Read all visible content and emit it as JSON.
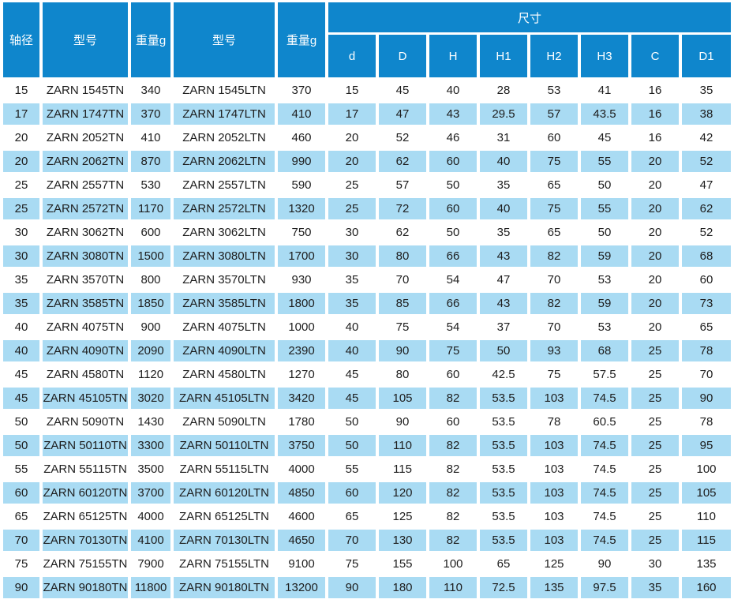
{
  "table": {
    "headers": {
      "shaft_diameter": "轴径",
      "model_1": "型号",
      "weight_1": "重量g",
      "model_2": "型号",
      "weight_2": "重量g",
      "dimensions_group": "尺寸",
      "dim_cols": [
        "d",
        "D",
        "H",
        "H1",
        "H2",
        "H3",
        "C",
        "D1"
      ]
    },
    "colors": {
      "header_bg": "#0f86cc",
      "row_alt_bg": "#a9dbf3",
      "row_bg": "#ffffff",
      "text": "#1d1d1d",
      "header_text": "#ffffff"
    },
    "rows": [
      [
        15,
        "ZARN 1545TN",
        340,
        "ZARN 1545LTN",
        370,
        15,
        45,
        40,
        28,
        53,
        41,
        16,
        35
      ],
      [
        17,
        "ZARN 1747TN",
        370,
        "ZARN 1747LTN",
        410,
        17,
        47,
        43,
        29.5,
        57,
        43.5,
        16,
        38
      ],
      [
        20,
        "ZARN 2052TN",
        410,
        "ZARN 2052LTN",
        460,
        20,
        52,
        46,
        31,
        60,
        45,
        16,
        42
      ],
      [
        20,
        "ZARN 2062TN",
        870,
        "ZARN 2062LTN",
        990,
        20,
        62,
        60,
        40,
        75,
        55,
        20,
        52
      ],
      [
        25,
        "ZARN 2557TN",
        530,
        "ZARN 2557LTN",
        590,
        25,
        57,
        50,
        35,
        65,
        50,
        20,
        47
      ],
      [
        25,
        "ZARN 2572TN",
        1170,
        "ZARN 2572LTN",
        1320,
        25,
        72,
        60,
        40,
        75,
        55,
        20,
        62
      ],
      [
        30,
        "ZARN 3062TN",
        600,
        "ZARN 3062LTN",
        750,
        30,
        62,
        50,
        35,
        65,
        50,
        20,
        52
      ],
      [
        30,
        "ZARN 3080TN",
        1500,
        "ZARN 3080LTN",
        1700,
        30,
        80,
        66,
        43,
        82,
        59,
        20,
        68
      ],
      [
        35,
        "ZARN 3570TN",
        800,
        "ZARN 3570LTN",
        930,
        35,
        70,
        54,
        47,
        70,
        53,
        20,
        60
      ],
      [
        35,
        "ZARN 3585TN",
        1850,
        "ZARN 3585LTN",
        1800,
        35,
        85,
        66,
        43,
        82,
        59,
        20,
        73
      ],
      [
        40,
        "ZARN 4075TN",
        900,
        "ZARN 4075LTN",
        1000,
        40,
        75,
        54,
        37,
        70,
        53,
        20,
        65
      ],
      [
        40,
        "ZARN 4090TN",
        2090,
        "ZARN 4090LTN",
        2390,
        40,
        90,
        75,
        50,
        93,
        68,
        25,
        78
      ],
      [
        45,
        "ZARN 4580TN",
        1120,
        "ZARN 4580LTN",
        1270,
        45,
        80,
        60,
        42.5,
        75,
        57.5,
        25,
        70
      ],
      [
        45,
        "ZARN 45105TN",
        3020,
        "ZARN 45105LTN",
        3420,
        45,
        105,
        82,
        53.5,
        103,
        74.5,
        25,
        90
      ],
      [
        50,
        "ZARN 5090TN",
        1430,
        "ZARN 5090LTN",
        1780,
        50,
        90,
        60,
        53.5,
        78,
        60.5,
        25,
        78
      ],
      [
        50,
        "ZARN 50110TN",
        3300,
        "ZARN 50110LTN",
        3750,
        50,
        110,
        82,
        53.5,
        103,
        74.5,
        25,
        95
      ],
      [
        55,
        "ZARN 55115TN",
        3500,
        "ZARN 55115LTN",
        4000,
        55,
        115,
        82,
        53.5,
        103,
        74.5,
        25,
        100
      ],
      [
        60,
        "ZARN 60120TN",
        3700,
        "ZARN 60120LTN",
        4850,
        60,
        120,
        82,
        53.5,
        103,
        74.5,
        25,
        105
      ],
      [
        65,
        "ZARN 65125TN",
        4000,
        "ZARN 65125LTN",
        4600,
        65,
        125,
        82,
        53.5,
        103,
        74.5,
        25,
        110
      ],
      [
        70,
        "ZARN 70130TN",
        4100,
        "ZARN 70130LTN",
        4650,
        70,
        130,
        82,
        53.5,
        103,
        74.5,
        25,
        115
      ],
      [
        75,
        "ZARN 75155TN",
        7900,
        "ZARN 75155LTN",
        9100,
        75,
        155,
        100,
        65,
        125,
        90,
        30,
        135
      ],
      [
        90,
        "ZARN 90180TN",
        11800,
        "ZARN 90180LTN",
        13200,
        90,
        180,
        110,
        72.5,
        135,
        97.5,
        35,
        160
      ]
    ]
  }
}
